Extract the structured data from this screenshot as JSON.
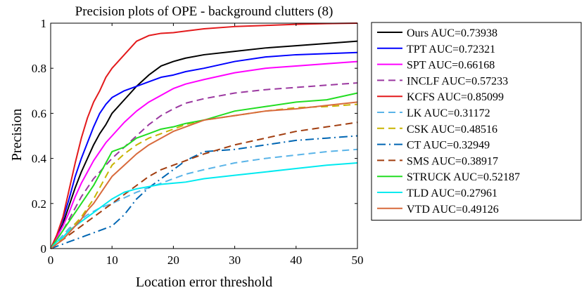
{
  "chart_data": {
    "type": "line",
    "title": "Precision plots of OPE - background clutters (8)",
    "xlabel": "Location error threshold",
    "ylabel": "Precision",
    "xlim": [
      0,
      50
    ],
    "ylim": [
      0,
      1
    ],
    "x_ticks": [
      0,
      10,
      20,
      30,
      40,
      50
    ],
    "y_ticks": [
      0,
      0.2,
      0.4,
      0.6,
      0.8,
      1
    ],
    "grid": false,
    "legend_position": "outside-right",
    "x": [
      0,
      1,
      2,
      3,
      4,
      5,
      6,
      7,
      8,
      9,
      10,
      12,
      14,
      16,
      18,
      20,
      22,
      25,
      30,
      35,
      40,
      45,
      50
    ],
    "series": [
      {
        "name": "Ours AUC=0.73938",
        "color": "#000000",
        "dash": "solid",
        "values": [
          0.0,
          0.05,
          0.11,
          0.19,
          0.27,
          0.34,
          0.4,
          0.46,
          0.51,
          0.55,
          0.6,
          0.66,
          0.72,
          0.77,
          0.81,
          0.83,
          0.845,
          0.86,
          0.875,
          0.89,
          0.9,
          0.91,
          0.92
        ]
      },
      {
        "name": "TPT AUC=0.72321",
        "color": "#0000ff",
        "dash": "solid",
        "values": [
          0.0,
          0.06,
          0.13,
          0.22,
          0.32,
          0.4,
          0.47,
          0.54,
          0.6,
          0.64,
          0.67,
          0.7,
          0.72,
          0.74,
          0.76,
          0.77,
          0.785,
          0.8,
          0.83,
          0.85,
          0.86,
          0.865,
          0.87
        ]
      },
      {
        "name": "SPT AUC=0.66168",
        "color": "#ff00ff",
        "dash": "solid",
        "values": [
          0.0,
          0.05,
          0.1,
          0.16,
          0.23,
          0.29,
          0.34,
          0.39,
          0.43,
          0.47,
          0.5,
          0.56,
          0.61,
          0.65,
          0.68,
          0.71,
          0.73,
          0.75,
          0.78,
          0.8,
          0.81,
          0.82,
          0.83
        ]
      },
      {
        "name": "INCLF AUC=0.57233",
        "color": "#9b38a0",
        "dash": "10,6",
        "values": [
          0.0,
          0.04,
          0.08,
          0.13,
          0.18,
          0.23,
          0.27,
          0.31,
          0.34,
          0.37,
          0.4,
          0.45,
          0.5,
          0.55,
          0.59,
          0.62,
          0.645,
          0.665,
          0.69,
          0.705,
          0.715,
          0.725,
          0.735
        ]
      },
      {
        "name": "KCFS AUC=0.85099",
        "color": "#e31a1c",
        "dash": "solid",
        "values": [
          0.0,
          0.06,
          0.14,
          0.26,
          0.38,
          0.49,
          0.58,
          0.65,
          0.7,
          0.76,
          0.8,
          0.86,
          0.92,
          0.945,
          0.955,
          0.958,
          0.965,
          0.975,
          0.985,
          0.99,
          0.995,
          0.998,
          1.0
        ]
      },
      {
        "name": "LK AUC=0.31172",
        "color": "#5ab4e8",
        "dash": "10,6",
        "values": [
          0.0,
          0.03,
          0.06,
          0.09,
          0.11,
          0.13,
          0.15,
          0.165,
          0.18,
          0.19,
          0.2,
          0.225,
          0.25,
          0.27,
          0.29,
          0.31,
          0.33,
          0.35,
          0.38,
          0.4,
          0.415,
          0.43,
          0.44
        ]
      },
      {
        "name": "CSK AUC=0.48516",
        "color": "#c8b400",
        "dash": "10,6",
        "values": [
          0.0,
          0.02,
          0.05,
          0.08,
          0.11,
          0.14,
          0.18,
          0.22,
          0.27,
          0.32,
          0.37,
          0.42,
          0.46,
          0.49,
          0.51,
          0.53,
          0.55,
          0.57,
          0.59,
          0.61,
          0.625,
          0.63,
          0.64
        ]
      },
      {
        "name": "CT AUC=0.32949",
        "color": "#0066b3",
        "dash": "12,5,2,5",
        "values": [
          0.0,
          0.01,
          0.02,
          0.03,
          0.04,
          0.05,
          0.06,
          0.07,
          0.08,
          0.09,
          0.1,
          0.15,
          0.22,
          0.27,
          0.31,
          0.35,
          0.39,
          0.43,
          0.44,
          0.46,
          0.48,
          0.49,
          0.5
        ]
      },
      {
        "name": "SMS AUC=0.38917",
        "color": "#a13d0f",
        "dash": "10,6",
        "values": [
          0.0,
          0.02,
          0.04,
          0.06,
          0.08,
          0.1,
          0.12,
          0.14,
          0.16,
          0.18,
          0.2,
          0.24,
          0.28,
          0.32,
          0.35,
          0.37,
          0.39,
          0.42,
          0.46,
          0.49,
          0.52,
          0.54,
          0.56
        ]
      },
      {
        "name": "STRUCK AUC=0.52187",
        "color": "#22dd22",
        "dash": "solid",
        "values": [
          0.0,
          0.04,
          0.08,
          0.12,
          0.16,
          0.2,
          0.24,
          0.28,
          0.33,
          0.38,
          0.43,
          0.45,
          0.49,
          0.51,
          0.53,
          0.54,
          0.555,
          0.57,
          0.61,
          0.63,
          0.65,
          0.66,
          0.69
        ]
      },
      {
        "name": "TLD AUC=0.27961",
        "color": "#00eaf0",
        "dash": "solid",
        "values": [
          0.0,
          0.03,
          0.05,
          0.08,
          0.1,
          0.12,
          0.14,
          0.16,
          0.18,
          0.2,
          0.22,
          0.25,
          0.265,
          0.275,
          0.285,
          0.29,
          0.295,
          0.31,
          0.325,
          0.34,
          0.355,
          0.37,
          0.38
        ]
      },
      {
        "name": "VTD AUC=0.49126",
        "color": "#d86a3c",
        "dash": "solid",
        "values": [
          0.0,
          0.02,
          0.04,
          0.07,
          0.1,
          0.13,
          0.17,
          0.2,
          0.24,
          0.28,
          0.32,
          0.37,
          0.42,
          0.46,
          0.49,
          0.52,
          0.54,
          0.57,
          0.59,
          0.61,
          0.62,
          0.635,
          0.65
        ]
      }
    ]
  }
}
